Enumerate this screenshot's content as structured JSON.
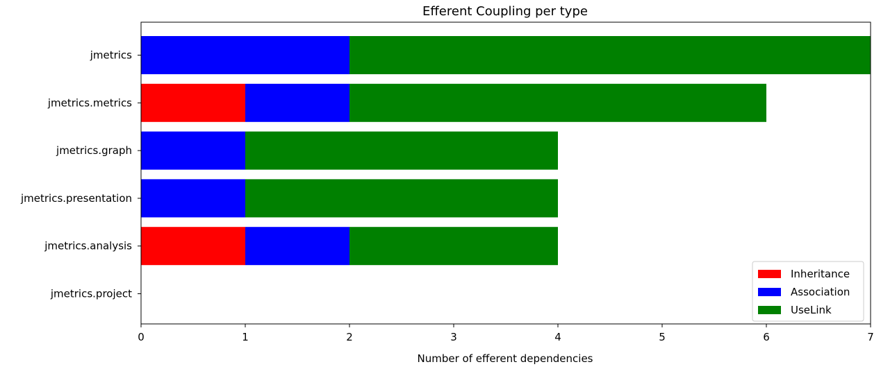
{
  "chart_data": {
    "type": "bar",
    "orientation": "horizontal",
    "stacked": true,
    "title": "Efferent Coupling per type",
    "xlabel": "Number of efferent dependencies",
    "ylabel": "",
    "xlim": [
      0,
      7
    ],
    "xticks": [
      "0",
      "1",
      "2",
      "3",
      "4",
      "5",
      "6",
      "7"
    ],
    "categories": [
      "jmetrics",
      "jmetrics.metrics",
      "jmetrics.graph",
      "jmetrics.presentation",
      "jmetrics.analysis",
      "jmetrics.project"
    ],
    "series": [
      {
        "name": "Inheritance",
        "color": "#ff0000",
        "values": [
          0,
          1,
          0,
          0,
          1,
          0
        ]
      },
      {
        "name": "Association",
        "color": "#0000ff",
        "values": [
          2,
          1,
          1,
          1,
          1,
          0
        ]
      },
      {
        "name": "UseLink",
        "color": "#008000",
        "values": [
          5,
          4,
          3,
          3,
          2,
          0
        ]
      }
    ],
    "grid": false,
    "legend_position": "lower-right"
  }
}
